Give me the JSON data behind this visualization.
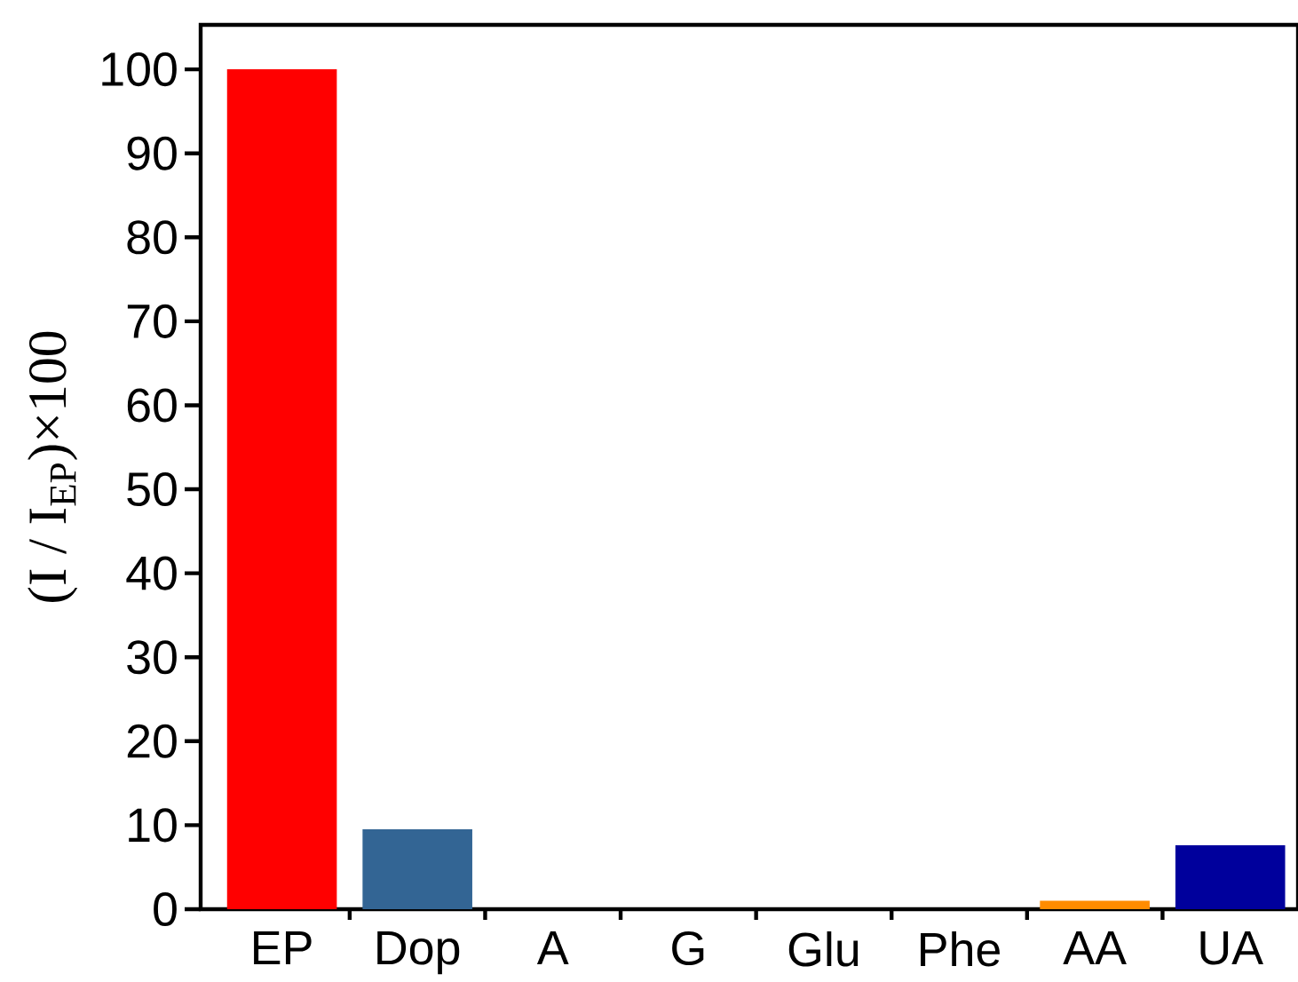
{
  "chart_data": {
    "type": "bar",
    "ylabel": "(I / I$_{EP}$)×100",
    "categories": [
      "EP",
      "Dop",
      "A",
      "G",
      "Glu",
      "Phe",
      "AA",
      "UA"
    ],
    "values": [
      100,
      9.5,
      0,
      0,
      0,
      0,
      1,
      7.6
    ],
    "colors": [
      "#ff0000",
      "#336594",
      "#808080",
      "#808080",
      "#808080",
      "#808080",
      "#ff8c00",
      "#00009c"
    ],
    "ylim": [
      0,
      105.3
    ],
    "yticks": [
      0,
      10,
      20,
      30,
      40,
      50,
      60,
      70,
      80,
      90,
      100
    ],
    "grid": false
  }
}
